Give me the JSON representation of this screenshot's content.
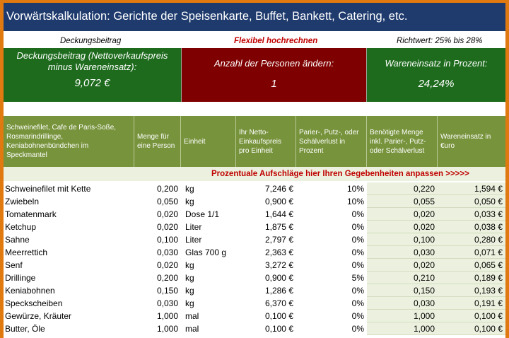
{
  "title": "Vorwärtskalkulation: Gerichte der Speisenkarte, Buffet, Bankett, Catering, etc.",
  "info": {
    "left": "Deckungsbeitrag",
    "center": "Flexibel hochrechnen",
    "right": "Richtwert: 25% bis 28%"
  },
  "boxes": {
    "db_label": "Deckungsbeitrag (Nettoverkaufspreis minus Wareneinsatz):",
    "db_value": "9,072 €",
    "persons_label": "Anzahl der Personen ändern:",
    "persons_value": "1",
    "percent_label": "Wareneinsatz in Prozent:",
    "percent_value": "24,24%"
  },
  "colors": {
    "title_bg": "#1f3b6e",
    "green_box": "#1e6b1e",
    "red_box": "#7f0000",
    "header_green": "#77933c",
    "light_green": "#ebf1de",
    "notice_text": "#c00000",
    "border_orange": "#e07a10"
  },
  "headers": [
    "Schweinefilet, Cafe de Paris-Soße, Rosmarindrillinge, Keniabohnenbündchen im Speckmantel",
    "Menge für eine Person",
    "Einheit",
    "Ihr Netto-Einkaufspreis pro Einheit",
    "Parier-, Putz-, oder Schälverlust in Prozent",
    "Benötigte Menge inkl. Parier-, Putz- oder Schälverlust",
    "Wareneinsatz in €uro"
  ],
  "notice": "Prozentuale Aufschläge hier Ihren Gegebenheiten anpassen  >>>>>",
  "rows": [
    {
      "name": "Schweinefilet mit Kette",
      "qty": "0,200",
      "unit": "kg",
      "price": "7,246 €",
      "loss": "10%",
      "need": "0,220",
      "cost": "1,594 €"
    },
    {
      "name": "Zwiebeln",
      "qty": "0,050",
      "unit": "kg",
      "price": "0,900 €",
      "loss": "10%",
      "need": "0,055",
      "cost": "0,050 €"
    },
    {
      "name": "Tomatenmark",
      "qty": "0,020",
      "unit": "Dose 1/1",
      "price": "1,644 €",
      "loss": "0%",
      "need": "0,020",
      "cost": "0,033 €"
    },
    {
      "name": "Ketchup",
      "qty": "0,020",
      "unit": "Liter",
      "price": "1,875 €",
      "loss": "0%",
      "need": "0,020",
      "cost": "0,038 €"
    },
    {
      "name": "Sahne",
      "qty": "0,100",
      "unit": "Liter",
      "price": "2,797 €",
      "loss": "0%",
      "need": "0,100",
      "cost": "0,280 €"
    },
    {
      "name": "Meerrettich",
      "qty": "0,030",
      "unit": "Glas 700 g",
      "price": "2,363 €",
      "loss": "0%",
      "need": "0,030",
      "cost": "0,071 €"
    },
    {
      "name": "Senf",
      "qty": "0,020",
      "unit": "kg",
      "price": "3,272 €",
      "loss": "0%",
      "need": "0,020",
      "cost": "0,065 €"
    },
    {
      "name": "Drillinge",
      "qty": "0,200",
      "unit": "kg",
      "price": "0,900 €",
      "loss": "5%",
      "need": "0,210",
      "cost": "0,189 €"
    },
    {
      "name": "Keniabohnen",
      "qty": "0,150",
      "unit": "kg",
      "price": "1,286 €",
      "loss": "0%",
      "need": "0,150",
      "cost": "0,193 €"
    },
    {
      "name": "Speckscheiben",
      "qty": "0,030",
      "unit": "kg",
      "price": "6,370 €",
      "loss": "0%",
      "need": "0,030",
      "cost": "0,191 €"
    },
    {
      "name": "Gewürze, Kräuter",
      "qty": "1,000",
      "unit": "mal",
      "price": "0,100 €",
      "loss": "0%",
      "need": "1,000",
      "cost": "0,100 €"
    },
    {
      "name": "Butter, Öle",
      "qty": "1,000",
      "unit": "mal",
      "price": "0,100 €",
      "loss": "0%",
      "need": "1,000",
      "cost": "0,100 €"
    }
  ]
}
